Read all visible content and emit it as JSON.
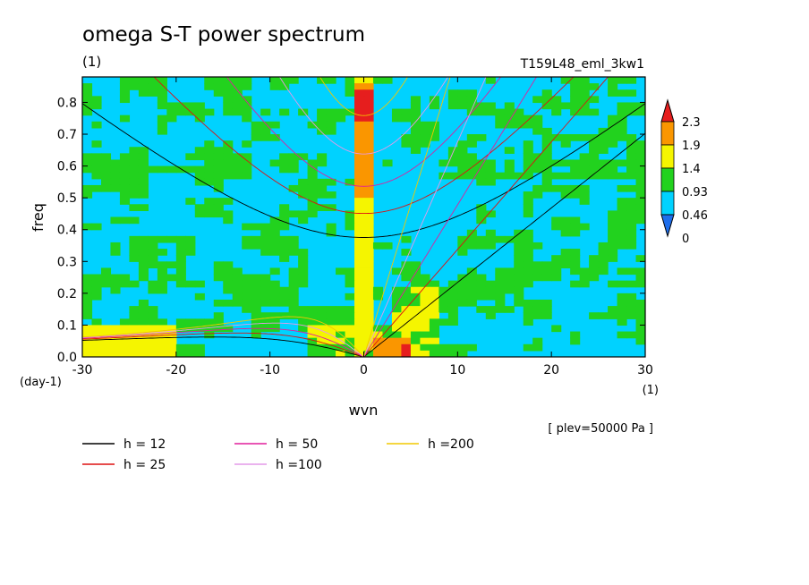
{
  "chart_data": {
    "type": "heatmap",
    "title": "omega S-T power spectrum",
    "subtitle": "(1)",
    "run_label": "T159L48_eml_3kw1",
    "xlabel": "wvn",
    "ylabel": "freq",
    "x_unit": "(1)",
    "y_unit": "(day-1)",
    "level_note": "[ plev=50000 Pa ]",
    "xlim": [
      -30,
      30
    ],
    "ylim": [
      0.0,
      0.88
    ],
    "x_ticks": [
      -30,
      -20,
      -10,
      0,
      10,
      20,
      30
    ],
    "y_ticks": [
      0.0,
      0.1,
      0.2,
      0.3,
      0.4,
      0.5,
      0.6,
      0.7,
      0.8
    ],
    "colorbar": {
      "labels": [
        "2.3",
        "1.9",
        "1.4",
        "0.93",
        "0.46",
        "0"
      ],
      "colors": [
        "#1e6eeb",
        "#00d2ff",
        "#22d21e",
        "#f5f500",
        "#fa9600",
        "#e61e1e"
      ]
    },
    "dispersion_curves": [
      {
        "label": "h = 12",
        "h": 12,
        "color": "#000000"
      },
      {
        "label": "h = 25",
        "h": 25,
        "color": "#dd1111"
      },
      {
        "label": "h = 50",
        "h": 50,
        "color": "#e01e9c"
      },
      {
        "label": "h =100",
        "h": 100,
        "color": "#e49ae8"
      },
      {
        "label": "h =200",
        "h": 200,
        "color": "#f2c800"
      }
    ]
  }
}
